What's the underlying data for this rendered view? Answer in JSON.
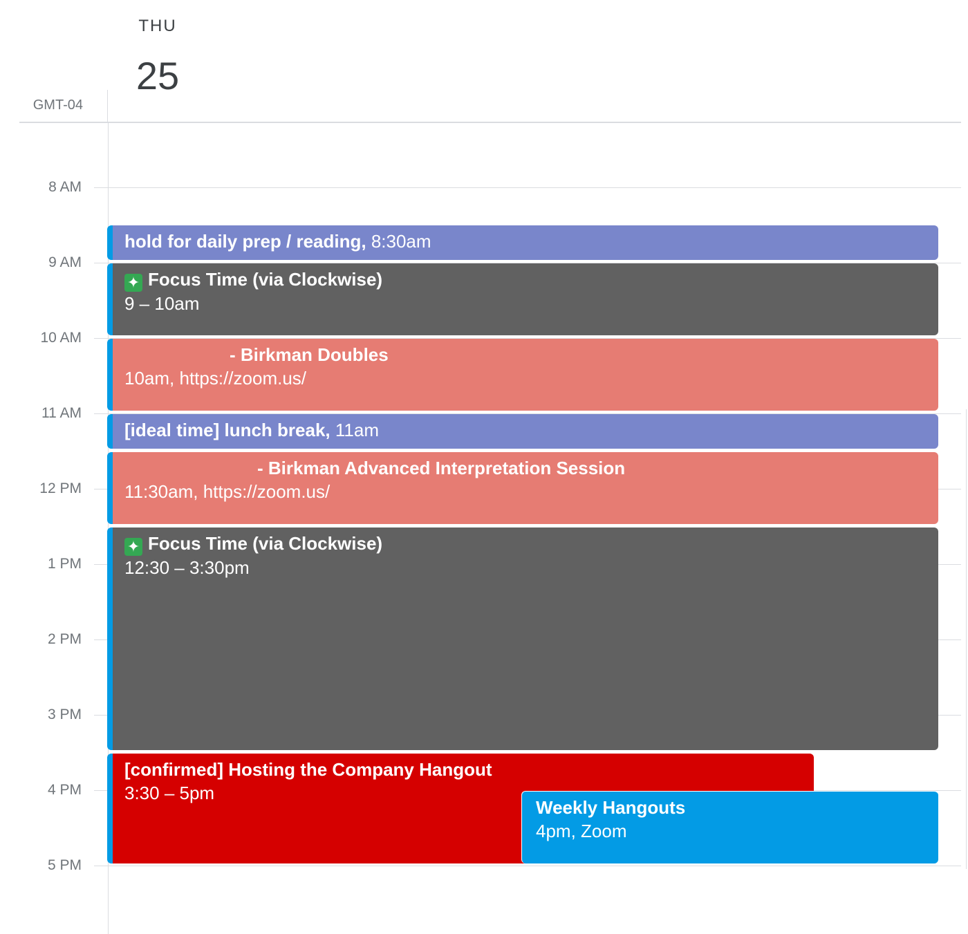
{
  "header": {
    "day_name": "THU",
    "day_number": "25",
    "timezone": "GMT-04"
  },
  "hours": [
    "8 AM",
    "9 AM",
    "10 AM",
    "11 AM",
    "12 PM",
    "1 PM",
    "2 PM",
    "3 PM",
    "4 PM",
    "5 PM"
  ],
  "colors": {
    "lavender": "#7986cb",
    "graphite": "#616161",
    "flamingo": "#e67c73",
    "tomato": "#d50000",
    "peacock": "#039be5"
  },
  "events": {
    "prep": {
      "title": "hold for daily prep / reading,",
      "time": "8:30am"
    },
    "focus1": {
      "icon": "sparkle-icon",
      "icon_glyph": "✦",
      "title": "Focus Time (via Clockwise)",
      "time": "9 – 10am"
    },
    "birkman1": {
      "title": "- Birkman Doubles",
      "time": "10am, https://zoom.us/"
    },
    "lunch": {
      "title": "[ideal time] lunch break,",
      "time": "11am"
    },
    "birkman2": {
      "title": "- Birkman Advanced Interpretation Session",
      "time": "11:30am, https://zoom.us/"
    },
    "focus2": {
      "icon": "sparkle-icon",
      "icon_glyph": "✦",
      "title": "Focus Time (via Clockwise)",
      "time": "12:30 – 3:30pm"
    },
    "hangout": {
      "title": "[confirmed] Hosting the Company Hangout",
      "time": "3:30 – 5pm"
    },
    "weekly": {
      "title": "Weekly Hangouts",
      "time": "4pm, Zoom"
    }
  }
}
